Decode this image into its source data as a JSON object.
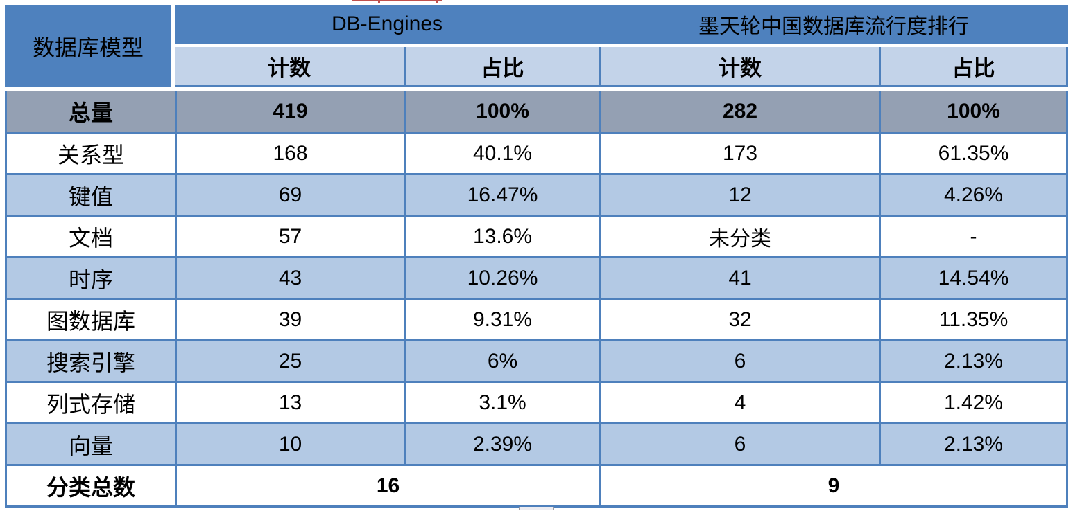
{
  "chart_data": {
    "type": "table",
    "corner_header": "数据库模型",
    "group_headers": [
      "DB-Engines",
      "墨天轮中国数据库流行度排行"
    ],
    "sub_headers": [
      "计数",
      "占比",
      "计数",
      "占比"
    ],
    "total_row": {
      "label": "总量",
      "values": [
        "419",
        "100%",
        "282",
        "100%"
      ]
    },
    "rows": [
      {
        "label": "关系型",
        "values": [
          "168",
          "40.1%",
          "173",
          "61.35%"
        ]
      },
      {
        "label": "键值",
        "values": [
          "69",
          "16.47%",
          "12",
          "4.26%"
        ]
      },
      {
        "label": "文档",
        "values": [
          "57",
          "13.6%",
          "未分类",
          "-"
        ]
      },
      {
        "label": "时序",
        "values": [
          "43",
          "10.26%",
          "41",
          "14.54%"
        ]
      },
      {
        "label": "图数据库",
        "values": [
          "39",
          "9.31%",
          "32",
          "11.35%"
        ]
      },
      {
        "label": "搜索引擎",
        "values": [
          "25",
          "6%",
          "6",
          "2.13%"
        ]
      },
      {
        "label": "列式存储",
        "values": [
          "13",
          "3.1%",
          "4",
          "1.42%"
        ]
      },
      {
        "label": "向量",
        "values": [
          "10",
          "2.39%",
          "6",
          "2.13%"
        ]
      }
    ],
    "footer_row": {
      "label": "分类总数",
      "values": [
        "16",
        "9"
      ]
    }
  },
  "colors": {
    "header_bg": "#4E81BE",
    "header_text": "#FFFFFF",
    "subheader_bg": "#C3D3E9",
    "row_alt_bg": "#B3C9E4",
    "total_row_bg": "#94A0B3",
    "border": "#4E80BC",
    "body_text": "#000000",
    "artifact_red": "#C0504D"
  }
}
